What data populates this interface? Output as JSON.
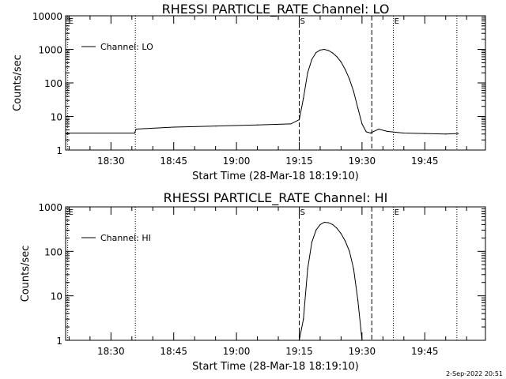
{
  "chart_data": [
    {
      "type": "line",
      "title": "RHESSI PARTICLE_RATE Channel: LO",
      "xlabel": "Start Time (28-Mar-18 18:19:10)",
      "ylabel": "Counts/sec",
      "y_scale": "log",
      "ylim": [
        1,
        10000
      ],
      "xlim": [
        "18:19:10",
        "19:59:30"
      ],
      "x_ticks": [
        "18:30",
        "18:45",
        "19:00",
        "19:15",
        "19:30",
        "19:45"
      ],
      "y_ticks": [
        "1",
        "10",
        "100",
        "1000",
        "10000"
      ],
      "legend": {
        "position": "top-left",
        "entries": [
          "Channel: LO"
        ]
      },
      "markers": [
        {
          "label": "E",
          "time": "18:19:40",
          "style": "dotted"
        },
        {
          "label": "",
          "time": "18:35:50",
          "style": "dotted"
        },
        {
          "label": "S",
          "time": "19:15:00",
          "style": "dashed"
        },
        {
          "label": "",
          "time": "19:32:20",
          "style": "dashed"
        },
        {
          "label": "E",
          "time": "19:37:30",
          "style": "dotted"
        },
        {
          "label": "",
          "time": "19:52:40",
          "style": "dotted"
        }
      ],
      "series": [
        {
          "name": "Channel: LO",
          "x": [
            "18:19:10",
            "18:25:00",
            "18:35:40",
            "18:36:00",
            "18:45:00",
            "18:55:00",
            "19:05:00",
            "19:13:00",
            "19:15:00",
            "19:16:00",
            "19:17:00",
            "19:18:00",
            "19:19:00",
            "19:20:00",
            "19:21:00",
            "19:22:00",
            "19:23:00",
            "19:24:00",
            "19:25:00",
            "19:26:00",
            "19:27:00",
            "19:28:00",
            "19:29:00",
            "19:30:00",
            "19:31:00",
            "19:32:00",
            "19:34:00",
            "19:36:00",
            "19:40:00",
            "19:45:00",
            "19:50:00",
            "19:53:00"
          ],
          "y": [
            3.2,
            3.2,
            3.2,
            4.2,
            4.8,
            5.2,
            5.6,
            6.0,
            8,
            35,
            200,
            500,
            800,
            950,
            1000,
            920,
            780,
            600,
            420,
            250,
            130,
            55,
            18,
            6,
            3.5,
            3.2,
            4.2,
            3.6,
            3.2,
            3.1,
            3.0,
            3.1
          ]
        }
      ]
    },
    {
      "type": "line",
      "title": "RHESSI PARTICLE_RATE Channel: HI",
      "xlabel": "Start Time (28-Mar-18 18:19:10)",
      "ylabel": "Counts/sec",
      "y_scale": "log",
      "ylim": [
        1,
        1000
      ],
      "xlim": [
        "18:19:10",
        "19:59:30"
      ],
      "x_ticks": [
        "18:30",
        "18:45",
        "19:00",
        "19:15",
        "19:30",
        "19:45"
      ],
      "y_ticks": [
        "1",
        "10",
        "100",
        "1000"
      ],
      "legend": {
        "position": "top-left",
        "entries": [
          "Channel: HI"
        ]
      },
      "markers": [
        {
          "label": "E",
          "time": "18:19:40",
          "style": "dotted"
        },
        {
          "label": "",
          "time": "18:35:50",
          "style": "dotted"
        },
        {
          "label": "S",
          "time": "19:15:00",
          "style": "dashed"
        },
        {
          "label": "",
          "time": "19:32:20",
          "style": "dashed"
        },
        {
          "label": "E",
          "time": "19:37:30",
          "style": "dotted"
        },
        {
          "label": "",
          "time": "19:52:40",
          "style": "dotted"
        }
      ],
      "series": [
        {
          "name": "Channel: HI",
          "x": [
            "19:15:00",
            "19:16:00",
            "19:17:00",
            "19:18:00",
            "19:19:00",
            "19:20:00",
            "19:21:00",
            "19:22:00",
            "19:23:00",
            "19:24:00",
            "19:25:00",
            "19:26:00",
            "19:27:00",
            "19:28:00",
            "19:29:00",
            "19:30:00"
          ],
          "y": [
            1,
            3,
            40,
            160,
            300,
            400,
            450,
            440,
            400,
            330,
            250,
            170,
            100,
            40,
            8,
            1
          ]
        }
      ]
    }
  ],
  "timestamp": "2-Sep-2022 20:51"
}
